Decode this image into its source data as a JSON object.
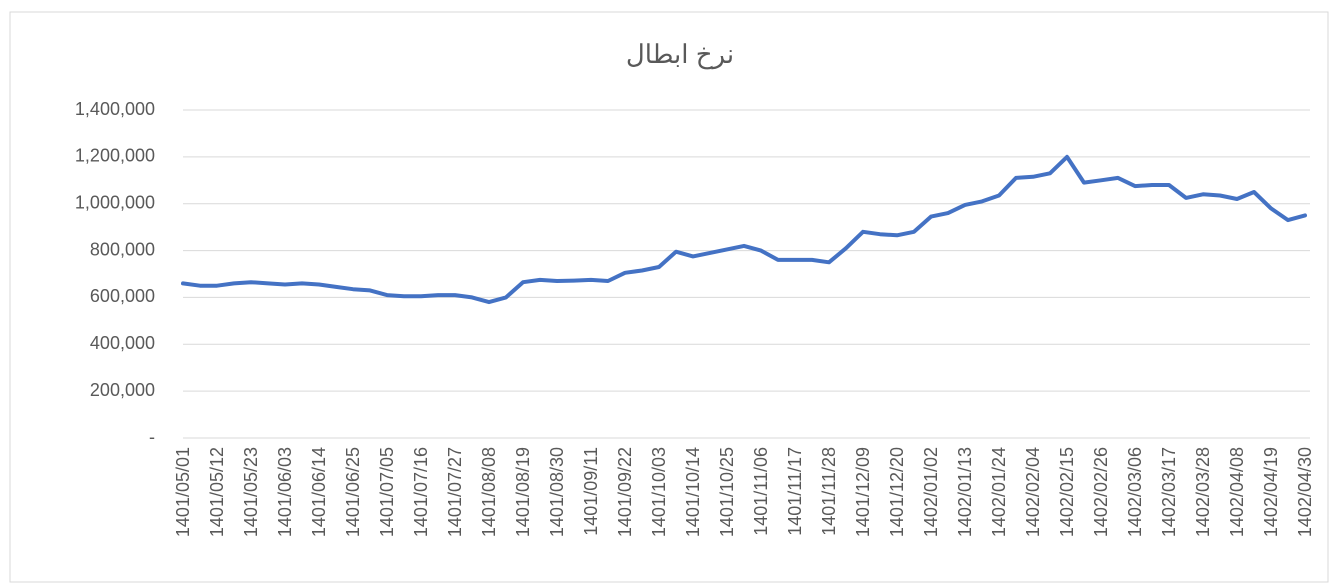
{
  "chart_data": {
    "type": "line",
    "title": "نرخ ابطال",
    "categories": [
      "1401/05/01",
      null,
      "1401/05/12",
      null,
      "1401/05/23",
      null,
      "1401/06/03",
      null,
      "1401/06/14",
      null,
      "1401/06/25",
      null,
      "1401/07/05",
      null,
      "1401/07/16",
      null,
      "1401/07/27",
      null,
      "1401/08/08",
      null,
      "1401/08/19",
      null,
      "1401/08/30",
      null,
      "1401/09/11",
      null,
      "1401/09/22",
      null,
      "1401/10/03",
      null,
      "1401/10/14",
      null,
      "1401/10/25",
      null,
      "1401/11/06",
      null,
      "1401/11/17",
      null,
      "1401/11/28",
      null,
      "1401/12/09",
      null,
      "1401/12/20",
      null,
      "1402/01/02",
      null,
      "1402/01/13",
      null,
      "1402/01/24",
      null,
      "1402/02/04",
      null,
      "1402/02/15",
      null,
      "1402/02/26",
      null,
      "1402/03/06",
      null,
      "1402/03/17",
      null,
      "1402/03/28",
      null,
      "1402/04/08",
      null,
      "1402/04/19",
      null,
      "1402/04/30"
    ],
    "series": [
      {
        "name": "نرخ ابطال",
        "color": "#4472c4",
        "values": [
          660000,
          650000,
          650000,
          660000,
          665000,
          660000,
          655000,
          660000,
          655000,
          645000,
          635000,
          630000,
          610000,
          605000,
          605000,
          610000,
          610000,
          600000,
          580000,
          600000,
          665000,
          675000,
          670000,
          672000,
          675000,
          670000,
          705000,
          715000,
          730000,
          795000,
          775000,
          790000,
          805000,
          820000,
          800000,
          760000,
          760000,
          760000,
          750000,
          810000,
          880000,
          870000,
          865000,
          880000,
          945000,
          960000,
          995000,
          1010000,
          1035000,
          1110000,
          1115000,
          1130000,
          1200000,
          1090000,
          1100000,
          1110000,
          1075000,
          1080000,
          1080000,
          1025000,
          1040000,
          1035000,
          1020000,
          1050000,
          980000,
          930000,
          950000
        ]
      }
    ],
    "ylim": [
      0,
      1400000
    ],
    "yticks": [
      {
        "value": 0,
        "label": "-"
      },
      {
        "value": 200000,
        "label": "200,000"
      },
      {
        "value": 400000,
        "label": "400,000"
      },
      {
        "value": 600000,
        "label": "600,000"
      },
      {
        "value": 800000,
        "label": "800,000"
      },
      {
        "value": 1000000,
        "label": "1,000,000"
      },
      {
        "value": 1200000,
        "label": "1,200,000"
      },
      {
        "value": 1400000,
        "label": "1,400,000"
      }
    ],
    "grid": true
  }
}
